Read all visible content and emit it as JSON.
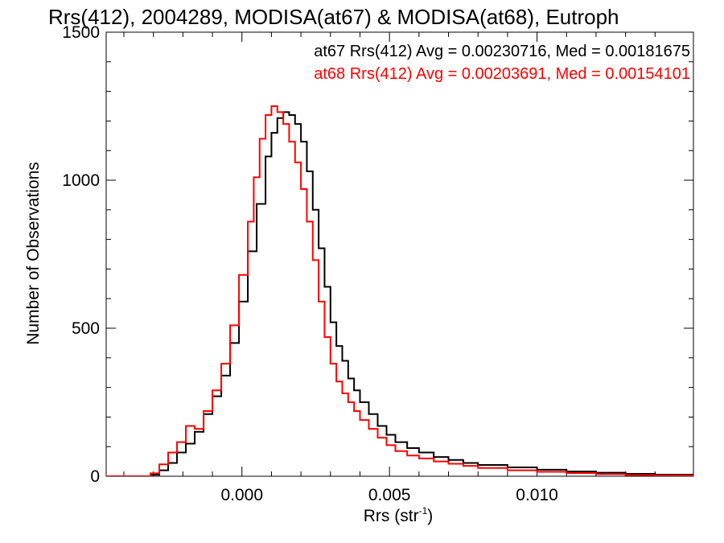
{
  "chart_data": {
    "type": "histogram",
    "title": "Rrs(412), 2004289, MODISA(at67) & MODISA(at68), Eutroph",
    "xlabel": "Rrs (str",
    "xlabel_sup": "-1",
    "xlabel_close": ")",
    "ylabel": "Number of Observations",
    "xlim": [
      -0.0046,
      0.0153
    ],
    "ylim": [
      0,
      1500
    ],
    "xticks": [
      0.0,
      0.005,
      0.01
    ],
    "xtick_labels": [
      "0.000",
      "0.005",
      "0.010"
    ],
    "yticks": [
      0,
      500,
      1000,
      1500
    ],
    "ytick_labels": [
      "0",
      "500",
      "1000",
      "1500"
    ],
    "series": [
      {
        "name": "at67 Rrs(412) Avg = 0.00230716, Med = 0.00181675",
        "color": "#000000",
        "x": [
          -0.0046,
          -0.0042,
          -0.0038,
          -0.0034,
          -0.0031,
          -0.0028,
          -0.0025,
          -0.0022,
          -0.0019,
          -0.0016,
          -0.0013,
          -0.001,
          -0.0007,
          -0.0004,
          -0.0001,
          0.0002,
          0.0005,
          0.0008,
          0.001,
          0.0012,
          0.0014,
          0.0016,
          0.0018,
          0.002,
          0.0022,
          0.0024,
          0.0026,
          0.0028,
          0.003,
          0.0032,
          0.0034,
          0.0036,
          0.0038,
          0.004,
          0.0043,
          0.0046,
          0.0049,
          0.0052,
          0.0056,
          0.006,
          0.0065,
          0.007,
          0.0075,
          0.008,
          0.009,
          0.01,
          0.011,
          0.012,
          0.013,
          0.014,
          0.0153
        ],
        "y": [
          0,
          0,
          0,
          0,
          5,
          20,
          45,
          80,
          110,
          150,
          210,
          270,
          340,
          450,
          590,
          760,
          920,
          1080,
          1160,
          1210,
          1230,
          1220,
          1190,
          1130,
          1030,
          900,
          770,
          640,
          520,
          440,
          390,
          330,
          290,
          250,
          210,
          170,
          140,
          115,
          95,
          80,
          65,
          55,
          45,
          38,
          30,
          22,
          16,
          12,
          8,
          5,
          3
        ]
      },
      {
        "name": "at68 Rrs(412) Avg = 0.00203691, Med = 0.00154101",
        "color": "#ff0000",
        "x": [
          -0.0046,
          -0.0042,
          -0.0038,
          -0.0034,
          -0.0031,
          -0.0028,
          -0.0025,
          -0.0022,
          -0.0019,
          -0.0016,
          -0.0013,
          -0.001,
          -0.0007,
          -0.0004,
          -0.0001,
          0.0002,
          0.0004,
          0.0006,
          0.0008,
          0.001,
          0.0012,
          0.0014,
          0.0016,
          0.0018,
          0.002,
          0.0022,
          0.0024,
          0.0026,
          0.0028,
          0.003,
          0.0032,
          0.0034,
          0.0036,
          0.0038,
          0.004,
          0.0043,
          0.0046,
          0.0049,
          0.0052,
          0.0056,
          0.006,
          0.0065,
          0.007,
          0.0075,
          0.008,
          0.009,
          0.01,
          0.011,
          0.012,
          0.013,
          0.014,
          0.0153
        ],
        "y": [
          0,
          0,
          0,
          0,
          10,
          40,
          80,
          115,
          170,
          160,
          220,
          290,
          380,
          510,
          680,
          860,
          1010,
          1140,
          1220,
          1250,
          1230,
          1190,
          1130,
          1060,
          970,
          860,
          730,
          590,
          470,
          380,
          320,
          280,
          250,
          220,
          190,
          160,
          130,
          105,
          85,
          70,
          60,
          50,
          42,
          35,
          28,
          20,
          15,
          11,
          7,
          4,
          2
        ]
      }
    ]
  }
}
